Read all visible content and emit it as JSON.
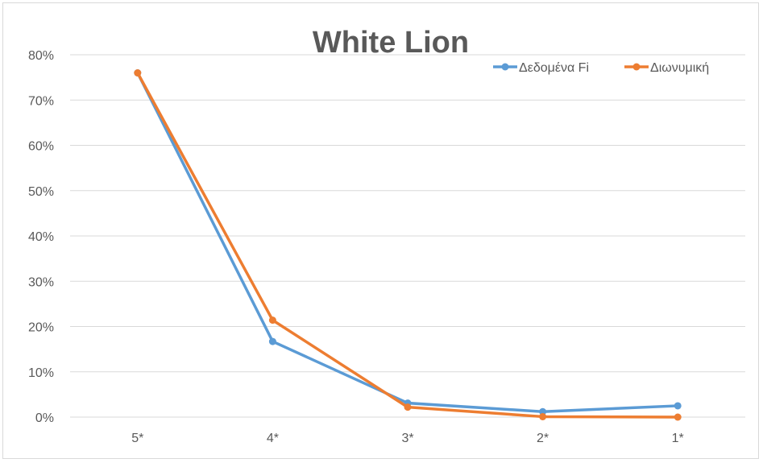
{
  "chart_data": {
    "type": "line",
    "title": "White Lion",
    "xlabel": "",
    "ylabel": "",
    "categories": [
      "5*",
      "4*",
      "3*",
      "2*",
      "1*"
    ],
    "yticks": [
      "0%",
      "10%",
      "20%",
      "30%",
      "40%",
      "50%",
      "60%",
      "70%",
      "80%"
    ],
    "ylim": [
      0,
      80
    ],
    "grid": "horizontal",
    "legend_position": "top-right",
    "series": [
      {
        "name": "Δεδομένα Fi",
        "color": "#5b9bd5",
        "values": [
          76,
          16.7,
          3.1,
          1.2,
          2.5
        ]
      },
      {
        "name": "Διωνυμική",
        "color": "#ed7d31",
        "values": [
          76,
          21.4,
          2.2,
          0.1,
          0.0
        ]
      }
    ]
  }
}
